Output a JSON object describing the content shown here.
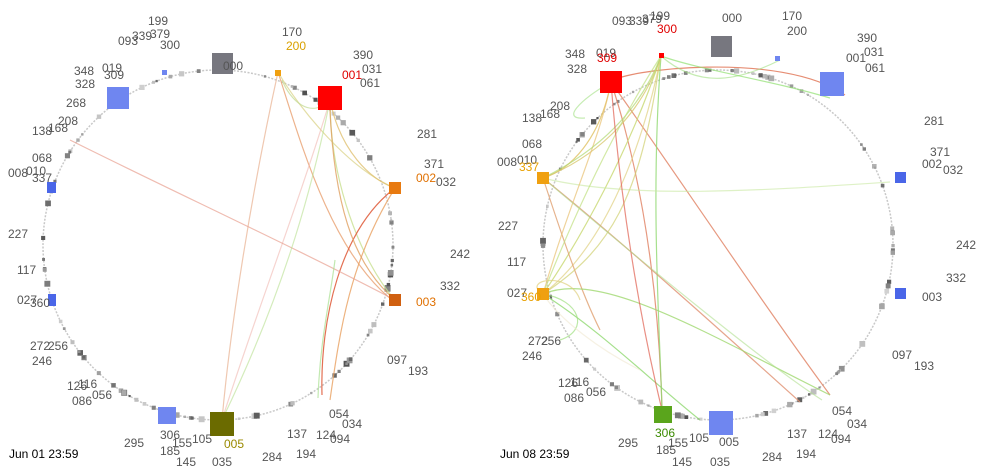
{
  "colors": {
    "label": "#555555",
    "gray_node": "#77777f",
    "blue_node": "#6f86f0",
    "red_node": "#ff0000",
    "orange_node": "#e87a10",
    "amber_node": "#f0a010",
    "olive_node": "#6b6b00",
    "green_node": "#5aa51c"
  },
  "panels": [
    {
      "timestamp": "Jun 01 23:59",
      "labels": [
        {
          "text": "000",
          "color": "#555555"
        },
        {
          "text": "170",
          "color": "#555555"
        },
        {
          "text": "200",
          "color": "#d9a000"
        },
        {
          "text": "199",
          "color": "#555555"
        },
        {
          "text": "093",
          "color": "#555555"
        },
        {
          "text": "379",
          "color": "#555555"
        },
        {
          "text": "339",
          "color": "#555555"
        },
        {
          "text": "300",
          "color": "#555555"
        },
        {
          "text": "390",
          "color": "#555555"
        },
        {
          "text": "001",
          "color": "#e00000"
        },
        {
          "text": "031",
          "color": "#555555"
        },
        {
          "text": "061",
          "color": "#555555"
        },
        {
          "text": "348",
          "color": "#555555"
        },
        {
          "text": "019",
          "color": "#555555"
        },
        {
          "text": "328",
          "color": "#555555"
        },
        {
          "text": "309",
          "color": "#555555"
        },
        {
          "text": "268",
          "color": "#555555"
        },
        {
          "text": "208",
          "color": "#555555"
        },
        {
          "text": "138",
          "color": "#555555"
        },
        {
          "text": "168",
          "color": "#555555"
        },
        {
          "text": "281",
          "color": "#555555"
        },
        {
          "text": "068",
          "color": "#555555"
        },
        {
          "text": "371",
          "color": "#555555"
        },
        {
          "text": "002",
          "color": "#e07000"
        },
        {
          "text": "032",
          "color": "#555555"
        },
        {
          "text": "008",
          "color": "#555555"
        },
        {
          "text": "010",
          "color": "#555555"
        },
        {
          "text": "337",
          "color": "#555555"
        },
        {
          "text": "227",
          "color": "#555555"
        },
        {
          "text": "242",
          "color": "#555555"
        },
        {
          "text": "117",
          "color": "#555555"
        },
        {
          "text": "332",
          "color": "#555555"
        },
        {
          "text": "027",
          "color": "#555555"
        },
        {
          "text": "360",
          "color": "#555555"
        },
        {
          "text": "003",
          "color": "#e07000"
        },
        {
          "text": "272",
          "color": "#555555"
        },
        {
          "text": "256",
          "color": "#555555"
        },
        {
          "text": "246",
          "color": "#555555"
        },
        {
          "text": "097",
          "color": "#555555"
        },
        {
          "text": "193",
          "color": "#555555"
        },
        {
          "text": "126",
          "color": "#555555"
        },
        {
          "text": "116",
          "color": "#555555"
        },
        {
          "text": "086",
          "color": "#555555"
        },
        {
          "text": "056",
          "color": "#555555"
        },
        {
          "text": "054",
          "color": "#555555"
        },
        {
          "text": "034",
          "color": "#555555"
        },
        {
          "text": "295",
          "color": "#555555"
        },
        {
          "text": "306",
          "color": "#555555"
        },
        {
          "text": "105",
          "color": "#555555"
        },
        {
          "text": "005",
          "color": "#9a8a00"
        },
        {
          "text": "137",
          "color": "#555555"
        },
        {
          "text": "124",
          "color": "#555555"
        },
        {
          "text": "094",
          "color": "#555555"
        },
        {
          "text": "185",
          "color": "#555555"
        },
        {
          "text": "155",
          "color": "#555555"
        },
        {
          "text": "145",
          "color": "#555555"
        },
        {
          "text": "035",
          "color": "#555555"
        },
        {
          "text": "284",
          "color": "#555555"
        },
        {
          "text": "194",
          "color": "#555555"
        }
      ]
    },
    {
      "timestamp": "Jun 08 23:59",
      "labels": [
        {
          "text": "199",
          "color": "#555555"
        },
        {
          "text": "093",
          "color": "#555555"
        },
        {
          "text": "339",
          "color": "#555555"
        },
        {
          "text": "379",
          "color": "#555555"
        },
        {
          "text": "300",
          "color": "#e00000"
        },
        {
          "text": "000",
          "color": "#555555"
        },
        {
          "text": "170",
          "color": "#555555"
        },
        {
          "text": "200",
          "color": "#555555"
        },
        {
          "text": "390",
          "color": "#555555"
        },
        {
          "text": "031",
          "color": "#555555"
        },
        {
          "text": "001",
          "color": "#555555"
        },
        {
          "text": "061",
          "color": "#555555"
        },
        {
          "text": "348",
          "color": "#555555"
        },
        {
          "text": "019",
          "color": "#555555"
        },
        {
          "text": "328",
          "color": "#555555"
        },
        {
          "text": "309",
          "color": "#e00000"
        },
        {
          "text": "208",
          "color": "#555555"
        },
        {
          "text": "138",
          "color": "#555555"
        },
        {
          "text": "168",
          "color": "#555555"
        },
        {
          "text": "281",
          "color": "#555555"
        },
        {
          "text": "068",
          "color": "#555555"
        },
        {
          "text": "371",
          "color": "#555555"
        },
        {
          "text": "002",
          "color": "#555555"
        },
        {
          "text": "032",
          "color": "#555555"
        },
        {
          "text": "008",
          "color": "#555555"
        },
        {
          "text": "010",
          "color": "#555555"
        },
        {
          "text": "337",
          "color": "#e8a000"
        },
        {
          "text": "227",
          "color": "#555555"
        },
        {
          "text": "242",
          "color": "#555555"
        },
        {
          "text": "117",
          "color": "#555555"
        },
        {
          "text": "332",
          "color": "#555555"
        },
        {
          "text": "027",
          "color": "#555555"
        },
        {
          "text": "360",
          "color": "#e8a000"
        },
        {
          "text": "003",
          "color": "#555555"
        },
        {
          "text": "272",
          "color": "#555555"
        },
        {
          "text": "256",
          "color": "#555555"
        },
        {
          "text": "246",
          "color": "#555555"
        },
        {
          "text": "097",
          "color": "#555555"
        },
        {
          "text": "193",
          "color": "#555555"
        },
        {
          "text": "126",
          "color": "#555555"
        },
        {
          "text": "116",
          "color": "#555555"
        },
        {
          "text": "086",
          "color": "#555555"
        },
        {
          "text": "056",
          "color": "#555555"
        },
        {
          "text": "054",
          "color": "#555555"
        },
        {
          "text": "034",
          "color": "#555555"
        },
        {
          "text": "295",
          "color": "#555555"
        },
        {
          "text": "306",
          "color": "#3a8a00"
        },
        {
          "text": "105",
          "color": "#555555"
        },
        {
          "text": "005",
          "color": "#555555"
        },
        {
          "text": "137",
          "color": "#555555"
        },
        {
          "text": "124",
          "color": "#555555"
        },
        {
          "text": "094",
          "color": "#555555"
        },
        {
          "text": "185",
          "color": "#555555"
        },
        {
          "text": "155",
          "color": "#555555"
        },
        {
          "text": "145",
          "color": "#555555"
        },
        {
          "text": "035",
          "color": "#555555"
        },
        {
          "text": "284",
          "color": "#555555"
        },
        {
          "text": "194",
          "color": "#555555"
        }
      ]
    }
  ]
}
